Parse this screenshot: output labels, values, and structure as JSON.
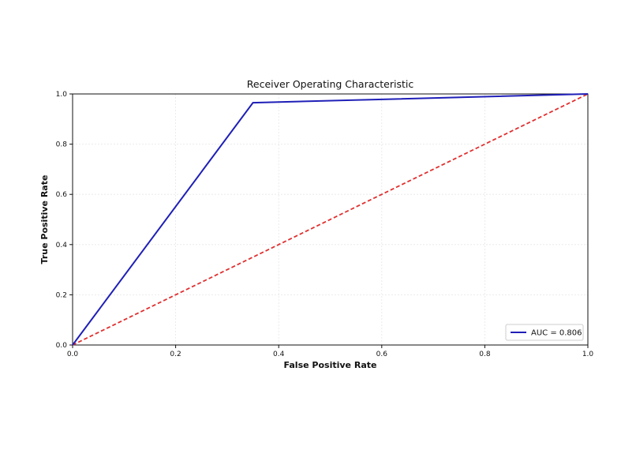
{
  "chart_data": {
    "type": "line",
    "title": "Receiver Operating Characteristic",
    "xlabel": "False Positive Rate",
    "ylabel": "True Positive Rate",
    "xlim": [
      0.0,
      1.0
    ],
    "ylim": [
      0.0,
      1.0
    ],
    "xticks": [
      "0.0",
      "0.2",
      "0.4",
      "0.6",
      "0.8",
      "1.0"
    ],
    "yticks": [
      "0.0",
      "0.2",
      "0.4",
      "0.6",
      "0.8",
      "1.0"
    ],
    "grid": true,
    "legend_position": "lower-right",
    "series": [
      {
        "name": "AUC = 0.806",
        "color": "#1f1fb8",
        "style": "solid",
        "points": [
          [
            0.0,
            0.0
          ],
          [
            0.35,
            0.965
          ],
          [
            1.0,
            1.0
          ]
        ]
      },
      {
        "color": "#e03030",
        "style": "dashed",
        "points": [
          [
            0.0,
            0.0
          ],
          [
            1.0,
            1.0
          ]
        ]
      }
    ]
  }
}
